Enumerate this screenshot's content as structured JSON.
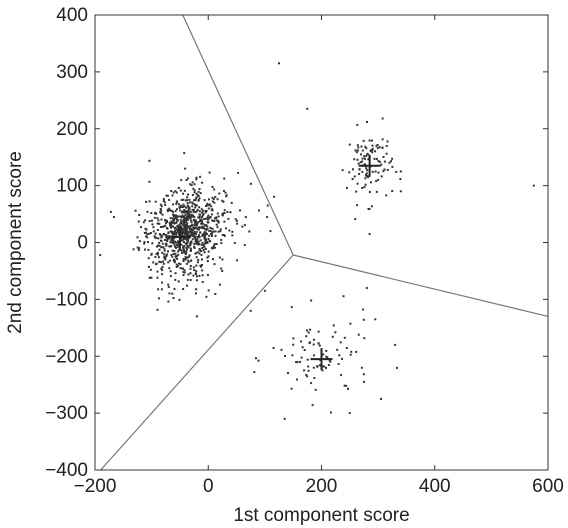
{
  "chart_data": {
    "type": "scatter",
    "title": "",
    "xlabel": "1st component score",
    "ylabel": "2nd component score",
    "xlim": [
      -200,
      600
    ],
    "ylim": [
      -400,
      400
    ],
    "xticks": [
      "−200",
      "0",
      "200",
      "400",
      "600"
    ],
    "yticks": [
      "400",
      "300",
      "200",
      "100",
      "0",
      "−100",
      "−200",
      "−300",
      "−400"
    ],
    "xtick_values": [
      -200,
      0,
      200,
      400,
      600
    ],
    "ytick_values": [
      400,
      300,
      200,
      100,
      0,
      -100,
      -200,
      -300,
      -400
    ],
    "grid": false,
    "legend": "none",
    "point_color": "#333333",
    "boundary_color": "#777777",
    "centroids": [
      {
        "x": -50,
        "y": 10
      },
      {
        "x": 285,
        "y": 135
      },
      {
        "x": 200,
        "y": -205
      }
    ],
    "cluster_spreads": [
      {
        "sd_x": 35,
        "sd_y": 38,
        "count": 900
      },
      {
        "sd_x": 20,
        "sd_y": 32,
        "count": 110
      },
      {
        "sd_x": 45,
        "sd_y": 38,
        "count": 90
      }
    ],
    "extra_points": [
      {
        "x": 125,
        "y": 315
      },
      {
        "x": 175,
        "y": 235
      },
      {
        "x": 575,
        "y": 100
      },
      {
        "x": 305,
        "y": -275
      },
      {
        "x": 135,
        "y": -310
      },
      {
        "x": 285,
        "y": 15
      },
      {
        "x": 280,
        "y": -80
      },
      {
        "x": 295,
        "y": -135
      },
      {
        "x": 340,
        "y": 90
      },
      {
        "x": 330,
        "y": -180
      },
      {
        "x": 75,
        "y": -120
      },
      {
        "x": 100,
        "y": -85
      },
      {
        "x": 110,
        "y": 20
      },
      {
        "x": 105,
        "y": 65
      },
      {
        "x": -20,
        "y": -130
      }
    ],
    "boundaries": {
      "junction": {
        "x": 150,
        "y": -22
      },
      "ends": [
        {
          "x": -45,
          "y": 400
        },
        {
          "x": 600,
          "y": -130
        },
        {
          "x": -190,
          "y": -400
        }
      ]
    }
  }
}
